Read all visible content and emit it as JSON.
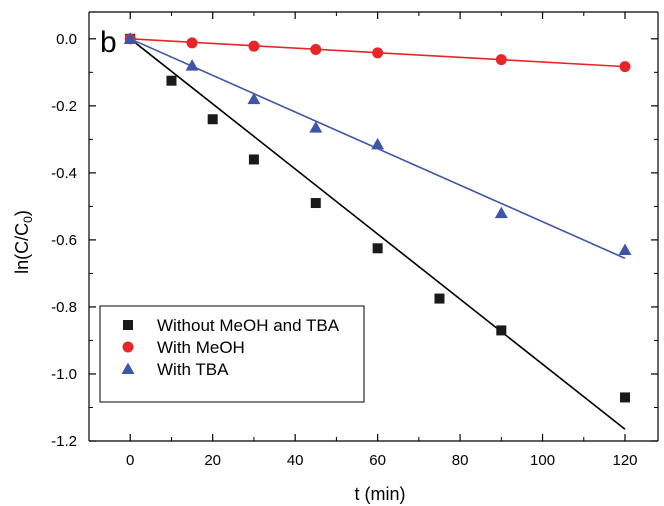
{
  "chart_data": {
    "type": "scatter",
    "panel_label": "b",
    "xlabel": "t (min)",
    "ylabel": {
      "main": "ln(C/C",
      "sub": "0",
      "close": ")"
    },
    "xlim": [
      -10,
      128
    ],
    "ylim": [
      -1.2,
      0.08
    ],
    "x_ticks": [
      0,
      20,
      40,
      60,
      80,
      100,
      120
    ],
    "y_ticks": [
      0.0,
      -0.2,
      -0.4,
      -0.6,
      -0.8,
      -1.0,
      -1.2
    ],
    "y_tick_labels": [
      "0.0",
      "-0.2",
      "-0.4",
      "-0.6",
      "-0.8",
      "-1.0",
      "-1.2"
    ],
    "legend_position": "bottom-left",
    "grid": false,
    "series": [
      {
        "name": "Without MeOH and TBA",
        "marker": "square",
        "color": "#1a1a1a",
        "points": [
          [
            0,
            0.0
          ],
          [
            10,
            -0.125
          ],
          [
            20,
            -0.24
          ],
          [
            30,
            -0.36
          ],
          [
            45,
            -0.49
          ],
          [
            60,
            -0.625
          ],
          [
            75,
            -0.775
          ],
          [
            90,
            -0.87
          ],
          [
            120,
            -1.07
          ]
        ],
        "fit": [
          [
            0,
            0.0
          ],
          [
            120,
            -1.165
          ]
        ]
      },
      {
        "name": "With MeOH",
        "marker": "circle",
        "color": "#e8262a",
        "line_color": "#e8262a",
        "points": [
          [
            0,
            0.0
          ],
          [
            15,
            -0.012
          ],
          [
            30,
            -0.022
          ],
          [
            45,
            -0.032
          ],
          [
            60,
            -0.042
          ],
          [
            90,
            -0.062
          ],
          [
            120,
            -0.083
          ]
        ],
        "fit": [
          [
            0,
            0.0
          ],
          [
            120,
            -0.083
          ]
        ]
      },
      {
        "name": "With TBA",
        "marker": "triangle",
        "color": "#3f56a8",
        "line_color": "#3f56a8",
        "points": [
          [
            0,
            0.0
          ],
          [
            15,
            -0.08
          ],
          [
            30,
            -0.18
          ],
          [
            45,
            -0.265
          ],
          [
            60,
            -0.315
          ],
          [
            90,
            -0.52
          ],
          [
            120,
            -0.63
          ]
        ],
        "fit": [
          [
            0,
            0.0
          ],
          [
            120,
            -0.655
          ]
        ]
      }
    ]
  }
}
